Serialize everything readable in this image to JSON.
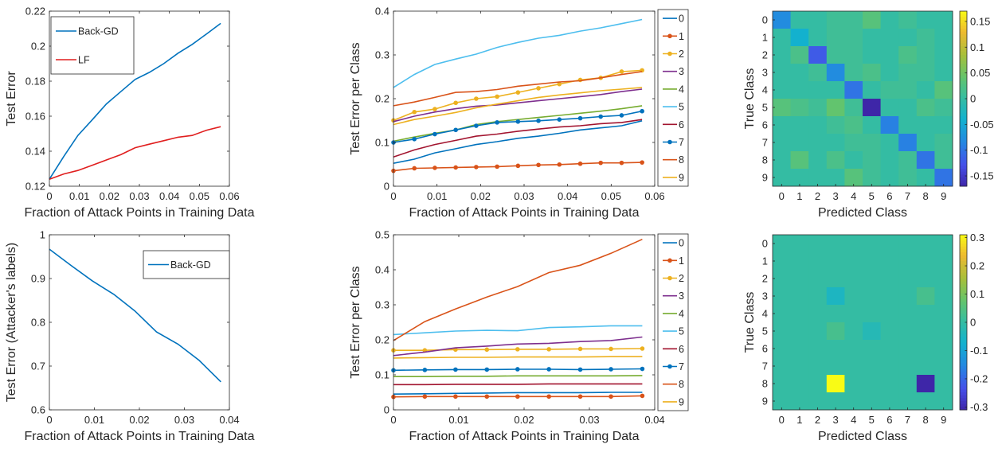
{
  "chart_data": [
    {
      "id": "p1",
      "type": "line",
      "xlabel": "Fraction of Attack Points in Training Data",
      "ylabel": "Test Error",
      "xlim": [
        0,
        0.06
      ],
      "ylim": [
        0.12,
        0.22
      ],
      "xticks": [
        "0",
        "0.01",
        "0.02",
        "0.03",
        "0.04",
        "0.05",
        "0.06"
      ],
      "yticks": [
        "0.12",
        "0.14",
        "0.16",
        "0.18",
        "0.2",
        "0.22"
      ],
      "legend": "top-left",
      "x": [
        0,
        0.0048,
        0.0095,
        0.0143,
        0.019,
        0.0238,
        0.0286,
        0.0333,
        0.0381,
        0.0429,
        0.0476,
        0.0524,
        0.0571
      ],
      "series": [
        {
          "name": "Back-GD",
          "color": "#0072bd",
          "values": [
            0.124,
            0.137,
            0.149,
            0.158,
            0.167,
            0.174,
            0.181,
            0.185,
            0.19,
            0.196,
            0.201,
            0.207,
            0.213
          ]
        },
        {
          "name": "LF",
          "color": "#e01e1e",
          "values": [
            0.124,
            0.127,
            0.129,
            0.132,
            0.135,
            0.138,
            0.142,
            0.144,
            0.146,
            0.148,
            0.149,
            0.152,
            0.154
          ]
        }
      ]
    },
    {
      "id": "p2",
      "type": "line",
      "xlabel": "Fraction of Attack Points in Training Data",
      "ylabel": "Test Error per Class",
      "xlim": [
        0,
        0.06
      ],
      "ylim": [
        0,
        0.42
      ],
      "xticks": [
        "0",
        "0.01",
        "0.02",
        "0.03",
        "0.04",
        "0.05",
        "0.06"
      ],
      "yticks": [
        "0",
        "0.1",
        "0.2",
        "0.3",
        "0.4"
      ],
      "legend": "right",
      "x": [
        0,
        0.0048,
        0.0095,
        0.0143,
        0.019,
        0.0238,
        0.0286,
        0.0333,
        0.0381,
        0.0429,
        0.0476,
        0.0524,
        0.0571
      ],
      "series": [
        {
          "name": "0",
          "color": "#0072bd",
          "marker": false,
          "values": [
            0.055,
            0.065,
            0.08,
            0.09,
            0.1,
            0.107,
            0.115,
            0.12,
            0.127,
            0.135,
            0.14,
            0.145,
            0.157
          ]
        },
        {
          "name": "1",
          "color": "#d95319",
          "marker": true,
          "values": [
            0.037,
            0.043,
            0.044,
            0.045,
            0.046,
            0.047,
            0.049,
            0.051,
            0.052,
            0.054,
            0.056,
            0.056,
            0.057
          ]
        },
        {
          "name": "2",
          "color": "#edb120",
          "marker": true,
          "values": [
            0.158,
            0.178,
            0.185,
            0.2,
            0.21,
            0.215,
            0.225,
            0.235,
            0.245,
            0.255,
            0.26,
            0.275,
            0.278
          ]
        },
        {
          "name": "3",
          "color": "#7e2f8e",
          "marker": false,
          "values": [
            0.155,
            0.168,
            0.178,
            0.186,
            0.192,
            0.195,
            0.2,
            0.205,
            0.21,
            0.215,
            0.22,
            0.227,
            0.233
          ]
        },
        {
          "name": "4",
          "color": "#77ac30",
          "marker": false,
          "values": [
            0.108,
            0.118,
            0.127,
            0.135,
            0.148,
            0.155,
            0.16,
            0.165,
            0.17,
            0.175,
            0.18,
            0.186,
            0.193
          ]
        },
        {
          "name": "5",
          "color": "#4dbeee",
          "marker": false,
          "values": [
            0.237,
            0.268,
            0.292,
            0.305,
            0.317,
            0.333,
            0.345,
            0.355,
            0.362,
            0.372,
            0.38,
            0.39,
            0.4
          ]
        },
        {
          "name": "6",
          "color": "#a2142f",
          "marker": false,
          "values": [
            0.07,
            0.087,
            0.1,
            0.11,
            0.12,
            0.125,
            0.132,
            0.137,
            0.142,
            0.145,
            0.15,
            0.153,
            0.16
          ]
        },
        {
          "name": "7",
          "color": "#0072bd",
          "marker": true,
          "values": [
            0.105,
            0.113,
            0.125,
            0.135,
            0.145,
            0.153,
            0.155,
            0.157,
            0.16,
            0.163,
            0.167,
            0.17,
            0.18
          ]
        },
        {
          "name": "8",
          "color": "#d95319",
          "marker": false,
          "values": [
            0.193,
            0.202,
            0.213,
            0.225,
            0.227,
            0.232,
            0.24,
            0.245,
            0.25,
            0.253,
            0.26,
            0.268,
            0.275
          ]
        },
        {
          "name": "9",
          "color": "#edb120",
          "marker": false,
          "values": [
            0.148,
            0.16,
            0.168,
            0.177,
            0.188,
            0.197,
            0.205,
            0.213,
            0.219,
            0.224,
            0.229,
            0.233,
            0.237
          ]
        }
      ]
    },
    {
      "id": "p3",
      "type": "heatmap",
      "xlabel": "Predicted Class",
      "ylabel": "True Class",
      "xticks": [
        "0",
        "1",
        "2",
        "3",
        "4",
        "5",
        "6",
        "7",
        "8",
        "9"
      ],
      "yticks": [
        "0",
        "1",
        "2",
        "3",
        "4",
        "5",
        "6",
        "7",
        "8",
        "9"
      ],
      "clim": [
        -0.17,
        0.17
      ],
      "colorbar_ticks": [
        "0.15",
        "0.1",
        "0.05",
        "0",
        "-0.05",
        "-0.1",
        "-0.15"
      ],
      "colorbar_tick_values": [
        0.15,
        0.1,
        0.05,
        0,
        -0.05,
        -0.1,
        -0.15
      ],
      "matrix": [
        [
          -0.08,
          0.0,
          0.0,
          0.01,
          0.01,
          0.03,
          0.0,
          0.01,
          0.0,
          0.0
        ],
        [
          0.0,
          -0.04,
          0.0,
          0.01,
          0.01,
          0.0,
          0.0,
          0.0,
          0.01,
          0.0
        ],
        [
          0.0,
          0.02,
          -0.12,
          0.01,
          0.01,
          0.0,
          0.0,
          0.02,
          0.01,
          0.0
        ],
        [
          0.0,
          0.0,
          0.01,
          -0.08,
          0.01,
          0.02,
          0.0,
          0.01,
          0.01,
          0.0
        ],
        [
          0.0,
          0.0,
          0.0,
          0.0,
          -0.1,
          0.0,
          0.01,
          0.01,
          0.0,
          0.03
        ],
        [
          0.03,
          0.02,
          0.01,
          0.04,
          0.01,
          -0.17,
          0.0,
          0.0,
          0.02,
          0.01
        ],
        [
          0.0,
          0.0,
          0.0,
          0.01,
          0.02,
          0.0,
          -0.09,
          0.0,
          0.0,
          0.0
        ],
        [
          0.0,
          0.0,
          0.0,
          0.0,
          0.01,
          0.01,
          0.0,
          -0.09,
          0.0,
          0.01
        ],
        [
          0.0,
          0.03,
          0.0,
          0.02,
          0.0,
          0.01,
          0.0,
          0.01,
          -0.1,
          0.01
        ],
        [
          0.0,
          0.0,
          0.0,
          0.0,
          0.03,
          0.01,
          0.0,
          0.01,
          0.0,
          -0.1
        ]
      ]
    },
    {
      "id": "p4",
      "type": "line",
      "xlabel": "Fraction of Attack Points in Training Data",
      "ylabel": "Test Error (Attacker's labels)",
      "xlim": [
        0,
        0.04
      ],
      "ylim": [
        0.6,
        1.0
      ],
      "xticks": [
        "0",
        "0.01",
        "0.02",
        "0.03",
        "0.04"
      ],
      "yticks": [
        "0.6",
        "0.7",
        "0.8",
        "0.9",
        "1"
      ],
      "legend": "top-right",
      "x": [
        0,
        0.0048,
        0.0095,
        0.0143,
        0.019,
        0.0238,
        0.0286,
        0.0333,
        0.0381
      ],
      "series": [
        {
          "name": "Back-GD",
          "color": "#0072bd",
          "values": [
            0.967,
            0.93,
            0.895,
            0.864,
            0.826,
            0.778,
            0.75,
            0.713,
            0.664
          ]
        }
      ]
    },
    {
      "id": "p5",
      "type": "line",
      "xlabel": "Fraction of Attack Points in Training Data",
      "ylabel": "Test Error per Class",
      "xlim": [
        0,
        0.04
      ],
      "ylim": [
        0,
        0.5
      ],
      "xticks": [
        "0",
        "0.01",
        "0.02",
        "0.03",
        "0.04"
      ],
      "yticks": [
        "0",
        "0.1",
        "0.2",
        "0.3",
        "0.4",
        "0.5"
      ],
      "legend": "right",
      "x": [
        0,
        0.0048,
        0.0095,
        0.0143,
        0.019,
        0.0238,
        0.0286,
        0.0333,
        0.0381
      ],
      "series": [
        {
          "name": "0",
          "color": "#0072bd",
          "marker": false,
          "values": [
            0.045,
            0.046,
            0.047,
            0.048,
            0.049,
            0.049,
            0.049,
            0.05,
            0.05
          ]
        },
        {
          "name": "1",
          "color": "#d95319",
          "marker": true,
          "values": [
            0.037,
            0.038,
            0.038,
            0.038,
            0.038,
            0.038,
            0.038,
            0.038,
            0.04
          ]
        },
        {
          "name": "2",
          "color": "#edb120",
          "marker": true,
          "values": [
            0.17,
            0.17,
            0.172,
            0.172,
            0.173,
            0.173,
            0.174,
            0.174,
            0.175
          ]
        },
        {
          "name": "3",
          "color": "#7e2f8e",
          "marker": false,
          "values": [
            0.155,
            0.165,
            0.177,
            0.182,
            0.188,
            0.19,
            0.195,
            0.198,
            0.208
          ]
        },
        {
          "name": "4",
          "color": "#77ac30",
          "marker": false,
          "values": [
            0.095,
            0.095,
            0.096,
            0.096,
            0.097,
            0.097,
            0.097,
            0.097,
            0.098
          ]
        },
        {
          "name": "5",
          "color": "#4dbeee",
          "marker": false,
          "values": [
            0.215,
            0.22,
            0.225,
            0.227,
            0.226,
            0.235,
            0.237,
            0.24,
            0.24
          ]
        },
        {
          "name": "6",
          "color": "#a2142f",
          "marker": false,
          "values": [
            0.072,
            0.072,
            0.073,
            0.073,
            0.073,
            0.074,
            0.074,
            0.074,
            0.074
          ]
        },
        {
          "name": "7",
          "color": "#0072bd",
          "marker": true,
          "values": [
            0.113,
            0.114,
            0.115,
            0.115,
            0.116,
            0.116,
            0.115,
            0.116,
            0.117
          ]
        },
        {
          "name": "8",
          "color": "#d95319",
          "marker": false,
          "values": [
            0.198,
            0.252,
            0.288,
            0.322,
            0.352,
            0.392,
            0.413,
            0.447,
            0.487
          ]
        },
        {
          "name": "9",
          "color": "#edb120",
          "marker": false,
          "values": [
            0.148,
            0.149,
            0.15,
            0.15,
            0.151,
            0.151,
            0.151,
            0.152,
            0.152
          ]
        }
      ]
    },
    {
      "id": "p6",
      "type": "heatmap",
      "xlabel": "Predicted Class",
      "ylabel": "True Class",
      "xticks": [
        "0",
        "1",
        "2",
        "3",
        "4",
        "5",
        "6",
        "7",
        "8",
        "9"
      ],
      "yticks": [
        "0",
        "1",
        "2",
        "3",
        "4",
        "5",
        "6",
        "7",
        "8",
        "9"
      ],
      "clim": [
        -0.31,
        0.31
      ],
      "colorbar_ticks": [
        "0.3",
        "0.2",
        "0.1",
        "0",
        "-0.1",
        "-0.2",
        "-0.3"
      ],
      "colorbar_tick_values": [
        0.3,
        0.2,
        0.1,
        0,
        -0.1,
        -0.2,
        -0.3
      ],
      "matrix": [
        [
          0,
          0,
          0,
          0,
          0,
          0,
          0,
          0,
          0,
          0
        ],
        [
          0,
          0,
          0,
          0,
          0,
          0,
          0,
          0,
          0,
          0
        ],
        [
          0,
          0,
          0,
          0,
          0,
          0,
          0,
          0,
          0,
          0
        ],
        [
          0,
          0,
          0,
          -0.05,
          0,
          0,
          0,
          0,
          0.03,
          0
        ],
        [
          0,
          0,
          0,
          0,
          0,
          0,
          0,
          0,
          0,
          0
        ],
        [
          0,
          0,
          0,
          0.03,
          0,
          -0.03,
          0,
          0,
          0,
          0
        ],
        [
          0,
          0,
          0,
          0,
          0,
          0,
          0,
          0,
          0,
          0
        ],
        [
          0,
          0,
          0,
          0,
          0,
          0,
          0,
          0,
          0,
          0
        ],
        [
          0,
          0,
          0,
          0.31,
          0,
          0,
          0,
          0,
          -0.31,
          0
        ],
        [
          0,
          0,
          0,
          0,
          0,
          0,
          0,
          0,
          0,
          0
        ]
      ]
    }
  ]
}
